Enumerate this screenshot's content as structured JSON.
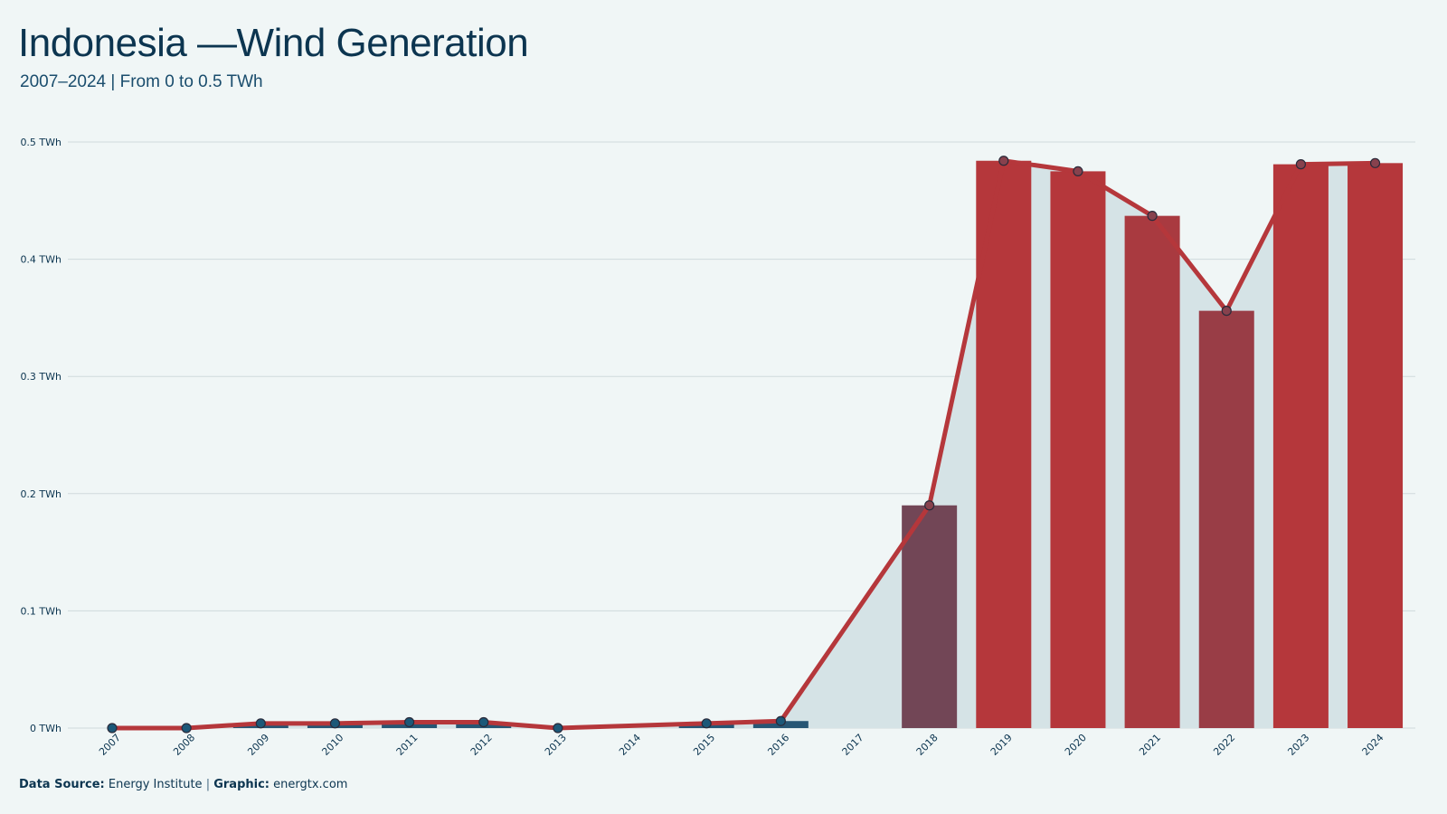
{
  "header": {
    "title": "Indonesia —Wind Generation",
    "subtitle": "2007–2024 | From 0 to 0.5 TWh"
  },
  "footer": {
    "source_label": "Data Source:",
    "source_value": "Energy Institute",
    "separator": "|",
    "graphic_label": "Graphic:",
    "graphic_value": "energtx.com"
  },
  "colors": {
    "background": "#f0f6f6",
    "text": "#0c3550",
    "grid": "#cfdadc",
    "area_fill": "#d5e3e6",
    "line": "#b5373b",
    "low_bar": "#1c5878",
    "high_bar": "#b5373b"
  },
  "chart_data": {
    "type": "bar",
    "title": "Indonesia —Wind Generation",
    "subtitle": "2007–2024 | From 0 to 0.5 TWh",
    "xlabel": "",
    "ylabel": "",
    "unit": "TWh",
    "ylim": [
      0,
      0.5
    ],
    "yticks": [
      0,
      0.1,
      0.2,
      0.3,
      0.4,
      0.5
    ],
    "ytick_labels": [
      "0 TWh",
      "0.1 TWh",
      "0.2 TWh",
      "0.3 TWh",
      "0.4 TWh",
      "0.5 TWh"
    ],
    "grid": true,
    "categories": [
      "2007",
      "2008",
      "2009",
      "2010",
      "2011",
      "2012",
      "2013",
      "2014",
      "2015",
      "2016",
      "2017",
      "2018",
      "2019",
      "2020",
      "2021",
      "2022",
      "2023",
      "2024"
    ],
    "values": [
      0,
      0,
      0.004,
      0.004,
      0.005,
      0.005,
      0,
      null,
      0.004,
      0.006,
      null,
      0.19,
      0.484,
      0.475,
      0.437,
      0.356,
      0.481,
      0.482
    ],
    "overlay": "line with markers and shaded area over the same values"
  }
}
